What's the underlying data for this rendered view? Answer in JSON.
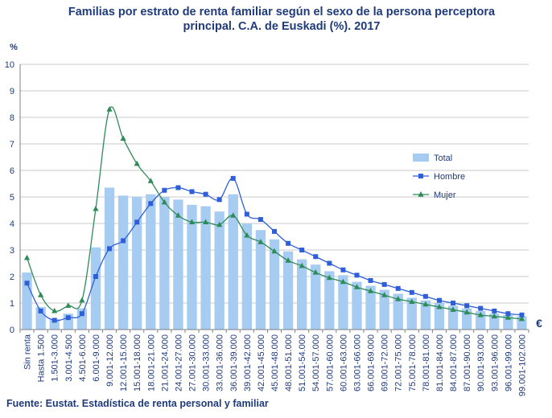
{
  "title_lines": [
    "Familias por estrato de renta familiar según el sexo de la persona perceptora",
    "principal. C.A. de Euskadi (%). 2017"
  ],
  "source": "Fuente: Eustat. Estadística de renta personal y familiar",
  "colors": {
    "bar": "#a6ccf2",
    "hombre": "#2f5fd8",
    "mujer": "#2e8b57",
    "text": "#1f3b7a",
    "grid": "#c8c8c8"
  },
  "chart_data": {
    "type": "bar+line",
    "title": "Familias por estrato de renta familiar según el sexo de la persona perceptora principal. C.A. de Euskadi (%). 2017",
    "ylabel": "%",
    "xlabel": "€",
    "ylim": [
      0,
      10
    ],
    "yticks": [
      0,
      1,
      2,
      3,
      4,
      5,
      6,
      7,
      8,
      9,
      10
    ],
    "legend_position": "right",
    "categories": [
      "Sin renta",
      "Hasta 1.500",
      "1.501-3.000",
      "3.001-4.500",
      "4.501-6.000",
      "6.001-9.000",
      "9.001-12.000",
      "12.001-15.000",
      "15.001-18.000",
      "18.001-21.000",
      "21.001-24.000",
      "24.001-27.000",
      "27.001-30.000",
      "30.001-33.000",
      "33.001-36.000",
      "36.001-39.000",
      "39.001-42.000",
      "42.001-45.000",
      "45.001-48.000",
      "48.001-51.000",
      "51.001-54.000",
      "54.001-57.000",
      "57.001-60.000",
      "60.001-63.000",
      "63.001-66.000",
      "66.001-69.000",
      "69.001-72.000",
      "72.001-75.000",
      "75.001-78.000",
      "78.001-81.000",
      "81.001-84.000",
      "84.001-87.000",
      "87.001-90.000",
      "90.001-93.000",
      "93.001-96.000",
      "96.001-99.000",
      "99.001-102.000"
    ],
    "series": [
      {
        "name": "Total",
        "type": "bar",
        "values": [
          2.15,
          0.85,
          0.4,
          0.6,
          0.8,
          3.1,
          5.35,
          5.05,
          5.0,
          5.1,
          5.0,
          4.9,
          4.7,
          4.65,
          4.45,
          5.1,
          4.0,
          3.75,
          3.4,
          2.95,
          2.65,
          2.45,
          2.2,
          2.05,
          1.8,
          1.65,
          1.5,
          1.35,
          1.2,
          1.1,
          1.0,
          0.9,
          0.8,
          0.7,
          0.6,
          0.55,
          0.5
        ]
      },
      {
        "name": "Hombre",
        "type": "line",
        "values": [
          1.75,
          0.7,
          0.35,
          0.45,
          0.6,
          2.0,
          3.05,
          3.35,
          4.05,
          4.75,
          5.25,
          5.35,
          5.2,
          5.1,
          4.9,
          5.7,
          4.35,
          4.15,
          3.7,
          3.25,
          3.0,
          2.75,
          2.5,
          2.25,
          2.05,
          1.85,
          1.7,
          1.55,
          1.4,
          1.25,
          1.1,
          1.0,
          0.9,
          0.8,
          0.7,
          0.6,
          0.55
        ]
      },
      {
        "name": "Mujer",
        "type": "line",
        "values": [
          2.7,
          1.3,
          0.7,
          0.9,
          1.1,
          4.55,
          8.3,
          7.2,
          6.25,
          5.6,
          4.8,
          4.3,
          4.05,
          4.05,
          3.95,
          4.3,
          3.55,
          3.3,
          2.95,
          2.6,
          2.4,
          2.15,
          1.95,
          1.8,
          1.6,
          1.45,
          1.3,
          1.15,
          1.05,
          0.95,
          0.85,
          0.75,
          0.65,
          0.55,
          0.5,
          0.45,
          0.4
        ]
      }
    ]
  }
}
